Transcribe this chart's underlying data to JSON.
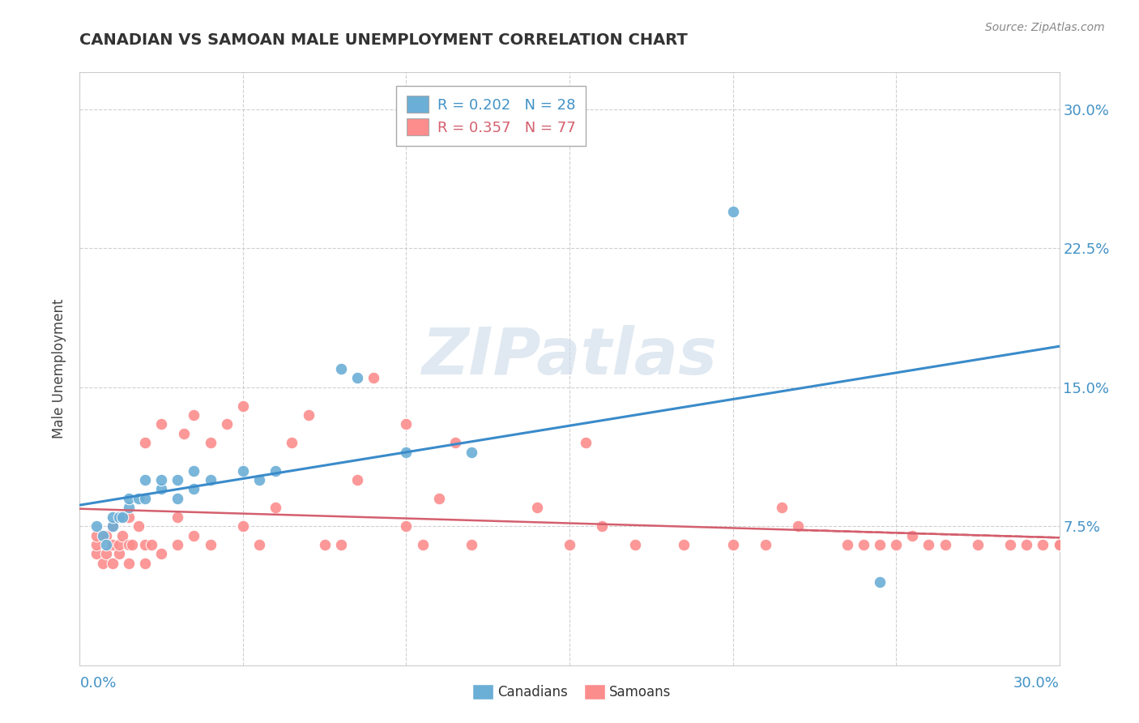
{
  "title": "CANADIAN VS SAMOAN MALE UNEMPLOYMENT CORRELATION CHART",
  "source": "Source: ZipAtlas.com",
  "ylabel": "Male Unemployment",
  "ytick_values": [
    0.075,
    0.15,
    0.225,
    0.3
  ],
  "xlim": [
    0.0,
    0.3
  ],
  "ylim": [
    0.0,
    0.32
  ],
  "legend_canadian": "R = 0.202   N = 28",
  "legend_samoan": "R = 0.357   N = 77",
  "canadian_color": "#6baed6",
  "samoan_color": "#fc8d8d",
  "canadian_line_color": "#3a8bca",
  "samoan_line_color": "#d45f6e",
  "watermark_text": "ZIPatlas",
  "canadians_x": [
    0.005,
    0.007,
    0.008,
    0.01,
    0.01,
    0.012,
    0.013,
    0.015,
    0.015,
    0.018,
    0.02,
    0.02,
    0.025,
    0.025,
    0.03,
    0.03,
    0.035,
    0.035,
    0.04,
    0.05,
    0.055,
    0.06,
    0.08,
    0.085,
    0.1,
    0.12,
    0.2,
    0.245
  ],
  "canadians_y": [
    0.075,
    0.07,
    0.065,
    0.075,
    0.08,
    0.08,
    0.08,
    0.085,
    0.09,
    0.09,
    0.09,
    0.1,
    0.095,
    0.1,
    0.09,
    0.1,
    0.095,
    0.105,
    0.1,
    0.105,
    0.1,
    0.105,
    0.16,
    0.155,
    0.115,
    0.115,
    0.245,
    0.045
  ],
  "samoans_x": [
    0.005,
    0.005,
    0.005,
    0.007,
    0.008,
    0.008,
    0.01,
    0.01,
    0.01,
    0.012,
    0.012,
    0.013,
    0.015,
    0.015,
    0.015,
    0.016,
    0.018,
    0.02,
    0.02,
    0.02,
    0.022,
    0.025,
    0.025,
    0.03,
    0.03,
    0.032,
    0.035,
    0.035,
    0.04,
    0.04,
    0.045,
    0.05,
    0.05,
    0.055,
    0.06,
    0.065,
    0.07,
    0.075,
    0.08,
    0.085,
    0.09,
    0.1,
    0.1,
    0.105,
    0.11,
    0.115,
    0.12,
    0.14,
    0.15,
    0.155,
    0.16,
    0.17,
    0.185,
    0.2,
    0.21,
    0.215,
    0.22,
    0.235,
    0.24,
    0.245,
    0.25,
    0.255,
    0.26,
    0.265,
    0.275,
    0.285,
    0.29,
    0.295,
    0.3,
    0.3,
    0.3,
    0.3,
    0.3,
    0.3,
    0.3,
    0.3,
    0.3
  ],
  "samoans_y": [
    0.06,
    0.065,
    0.07,
    0.055,
    0.06,
    0.07,
    0.055,
    0.065,
    0.075,
    0.06,
    0.065,
    0.07,
    0.055,
    0.065,
    0.08,
    0.065,
    0.075,
    0.055,
    0.065,
    0.12,
    0.065,
    0.06,
    0.13,
    0.065,
    0.08,
    0.125,
    0.07,
    0.135,
    0.065,
    0.12,
    0.13,
    0.075,
    0.14,
    0.065,
    0.085,
    0.12,
    0.135,
    0.065,
    0.065,
    0.1,
    0.155,
    0.075,
    0.13,
    0.065,
    0.09,
    0.12,
    0.065,
    0.085,
    0.065,
    0.12,
    0.075,
    0.065,
    0.065,
    0.065,
    0.065,
    0.085,
    0.075,
    0.065,
    0.065,
    0.065,
    0.065,
    0.07,
    0.065,
    0.065,
    0.065,
    0.065,
    0.065,
    0.065,
    0.065,
    0.065,
    0.065,
    0.065,
    0.065,
    0.065,
    0.065,
    0.065,
    0.065
  ]
}
